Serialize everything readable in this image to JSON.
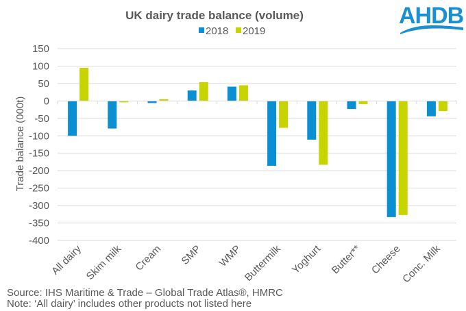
{
  "logo": {
    "text": "AHDB",
    "color": "#1a8fd1"
  },
  "footnotes": {
    "source": "Source: IHS Maritime & Trade – Global Trade Atlas®, HMRC",
    "note": "Note: ‘All dairy’ includes other products not listed here"
  },
  "chart_data": {
    "type": "bar",
    "title": "UK dairy trade balance (volume)",
    "xlabel": "",
    "ylabel": "Trade balance (000t)",
    "ylim": [
      -400,
      150
    ],
    "yticks": [
      150,
      100,
      50,
      0,
      -50,
      -100,
      -150,
      -200,
      -250,
      -300,
      -350,
      -400
    ],
    "grid": true,
    "legend_position": "top-center",
    "categories": [
      "All dairy",
      "Skim milk",
      "Cream",
      "SMP",
      "WMP",
      "Buttermilk",
      "Yoghurt",
      "Butter**",
      "Cheese",
      "Conc. Milk"
    ],
    "series": [
      {
        "name": "2018",
        "color": "#0a8fd2",
        "values": [
          -100,
          -79,
          -6,
          30,
          41,
          -186,
          -111,
          -23,
          -333,
          -44
        ]
      },
      {
        "name": "2019",
        "color": "#c8d400",
        "values": [
          95,
          -4,
          5,
          54,
          45,
          -77,
          -183,
          -9,
          -327,
          -29
        ]
      }
    ]
  }
}
